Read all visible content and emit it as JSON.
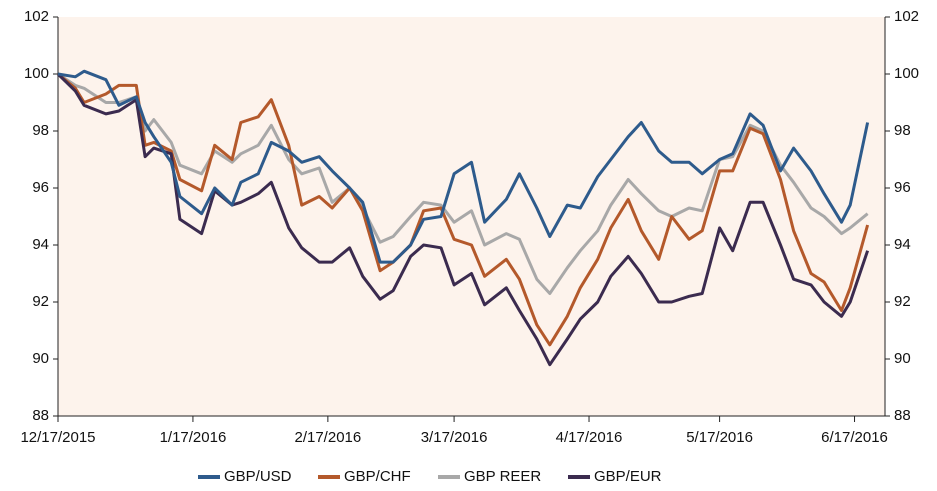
{
  "chart_data": {
    "type": "line",
    "x": [
      "12/17/2015",
      "12/21/2015",
      "12/23/2015",
      "12/28/2015",
      "12/31/2015",
      "1/4/2016",
      "1/6/2016",
      "1/8/2016",
      "1/12/2016",
      "1/14/2016",
      "1/19/2016",
      "1/22/2016",
      "1/26/2016",
      "1/28/2016",
      "2/1/2016",
      "2/4/2016",
      "2/8/2016",
      "2/11/2016",
      "2/15/2016",
      "2/18/2016",
      "2/22/2016",
      "2/25/2016",
      "2/29/2016",
      "3/3/2016",
      "3/7/2016",
      "3/10/2016",
      "3/14/2016",
      "3/17/2016",
      "3/21/2016",
      "3/24/2016",
      "3/29/2016",
      "4/1/2016",
      "4/5/2016",
      "4/8/2016",
      "4/12/2016",
      "4/15/2016",
      "4/19/2016",
      "4/22/2016",
      "4/26/2016",
      "4/29/2016",
      "5/3/2016",
      "5/6/2016",
      "5/10/2016",
      "5/13/2016",
      "5/17/2016",
      "5/20/2016",
      "5/24/2016",
      "5/27/2016",
      "5/31/2016",
      "6/3/2016",
      "6/7/2016",
      "6/10/2016",
      "6/14/2016",
      "6/16/2016",
      "6/20/2016"
    ],
    "series": [
      {
        "name": "GBP/USD",
        "color": "#2e5b8c",
        "values": [
          100,
          99.9,
          100.1,
          99.8,
          98.9,
          99.2,
          98.3,
          97.8,
          96.9,
          95.7,
          95.1,
          96,
          95.4,
          96.2,
          96.5,
          97.6,
          97.3,
          96.9,
          97.1,
          96.6,
          96,
          95.5,
          93.4,
          93.4,
          94,
          94.9,
          95,
          96.5,
          96.9,
          94.8,
          95.6,
          96.5,
          95.3,
          94.3,
          95.4,
          95.3,
          96.4,
          97,
          97.8,
          98.3,
          97.3,
          96.9,
          96.9,
          96.5,
          97,
          97.2,
          98.6,
          98.2,
          96.6,
          97.4,
          96.6,
          95.8,
          94.8,
          95.4,
          98.3
        ]
      },
      {
        "name": "GBP/CHF",
        "color": "#b4592b",
        "values": [
          100,
          99.5,
          99,
          99.3,
          99.6,
          99.6,
          97.5,
          97.6,
          97.3,
          96.3,
          95.9,
          97.5,
          97,
          98.3,
          98.5,
          99.1,
          97.5,
          95.4,
          95.7,
          95.3,
          96,
          95.2,
          93.1,
          93.4,
          94,
          95.2,
          95.3,
          94.2,
          94,
          92.9,
          93.5,
          92.8,
          91.2,
          90.5,
          91.5,
          92.5,
          93.5,
          94.6,
          95.6,
          94.5,
          93.5,
          95,
          94.2,
          94.5,
          96.6,
          96.6,
          98.1,
          97.9,
          96.3,
          94.5,
          93,
          92.7,
          91.7,
          92.5,
          94.7
        ]
      },
      {
        "name": "GBP REER",
        "color": "#a8a8a8",
        "values": [
          100,
          99.6,
          99.5,
          99,
          99,
          99.2,
          98,
          98.4,
          97.6,
          96.8,
          96.5,
          97.3,
          96.9,
          97.2,
          97.5,
          98.2,
          97,
          96.5,
          96.7,
          95.5,
          96,
          95.3,
          94.1,
          94.3,
          95,
          95.5,
          95.4,
          94.8,
          95.2,
          94,
          94.4,
          94.2,
          92.8,
          92.3,
          93.2,
          93.8,
          94.5,
          95.4,
          96.3,
          95.8,
          95.2,
          95,
          95.3,
          95.2,
          97,
          97.1,
          98.2,
          98,
          96.8,
          96.2,
          95.3,
          95,
          94.4,
          94.6,
          95.1
        ]
      },
      {
        "name": "GBP/EUR",
        "color": "#3b2b4f",
        "values": [
          100,
          99.4,
          98.9,
          98.6,
          98.7,
          99.1,
          97.1,
          97.4,
          97.2,
          94.9,
          94.4,
          95.9,
          95.4,
          95.5,
          95.8,
          96.2,
          94.6,
          93.9,
          93.4,
          93.4,
          93.9,
          92.9,
          92.1,
          92.4,
          93.6,
          94,
          93.9,
          92.6,
          93,
          91.9,
          92.5,
          91.7,
          90.7,
          89.8,
          90.7,
          91.4,
          92,
          92.9,
          93.6,
          93,
          92,
          92,
          92.2,
          92.3,
          94.6,
          93.8,
          95.5,
          95.5,
          94,
          92.8,
          92.6,
          92,
          91.5,
          92,
          93.8
        ]
      }
    ],
    "xlim": [
      "12/17/2015",
      "6/24/2016"
    ],
    "xticks": [
      "12/17/2015",
      "1/17/2016",
      "2/17/2016",
      "3/17/2016",
      "4/17/2016",
      "5/17/2016",
      "6/17/2016"
    ],
    "ylim": [
      88,
      102
    ],
    "yticks": [
      88,
      90,
      92,
      94,
      96,
      98,
      100,
      102
    ],
    "y2lim": [
      88,
      102
    ],
    "y2ticks": [
      88,
      90,
      92,
      94,
      96,
      98,
      100,
      102
    ],
    "legend": "bottom"
  }
}
